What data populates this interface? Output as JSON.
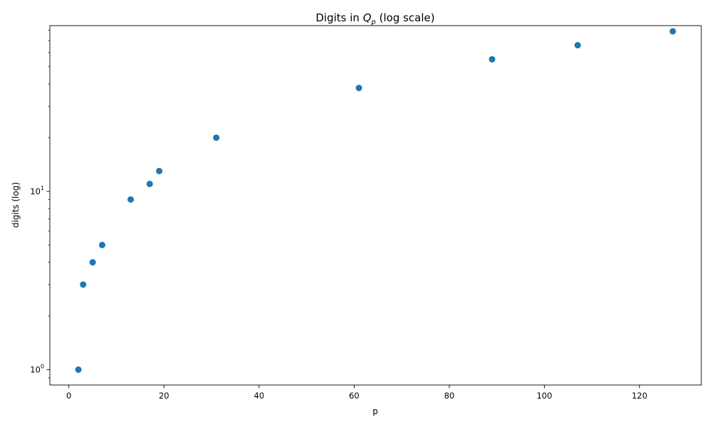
{
  "chart_data": {
    "type": "scatter",
    "title_prefix": "Digits in ",
    "title_math_base": "Q",
    "title_math_sub": "p",
    "title_suffix": " (log scale)",
    "xlabel": "p",
    "ylabel": "digits (log)",
    "x_scale": "linear",
    "y_scale": "log",
    "xlim": [
      -4,
      133
    ],
    "ylim": [
      0.82,
      85
    ],
    "grid": false,
    "marker_color": "#1f77b4",
    "x_ticks": [
      0,
      20,
      40,
      60,
      80,
      100,
      120
    ],
    "x_tick_labels": [
      "0",
      "20",
      "40",
      "60",
      "80",
      "100",
      "120"
    ],
    "y_ticks": [
      1,
      10
    ],
    "y_tick_labels": [
      {
        "base": "10",
        "exp": "0"
      },
      {
        "base": "10",
        "exp": "1"
      }
    ],
    "x": [
      2,
      3,
      5,
      7,
      13,
      17,
      19,
      31,
      61,
      89,
      107,
      127
    ],
    "y": [
      1,
      3,
      4,
      5,
      9,
      11,
      13,
      20,
      38,
      55,
      66,
      79
    ]
  }
}
